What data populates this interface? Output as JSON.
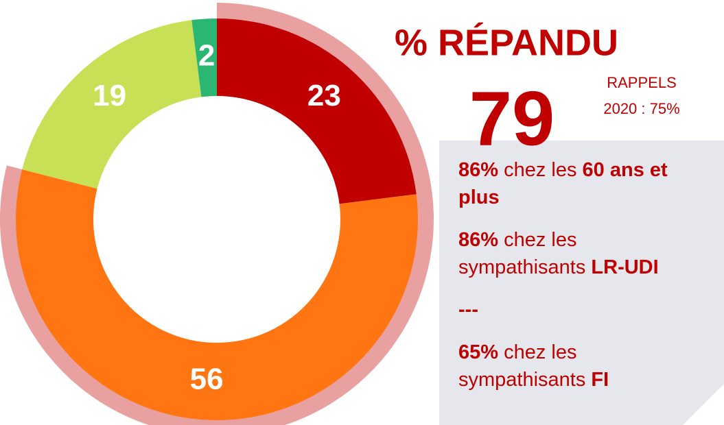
{
  "chart_data": {
    "type": "pie",
    "title": "% RÉPANDU",
    "values": [
      23,
      56,
      19,
      2
    ],
    "colors": [
      "#c00000",
      "#ff7511",
      "#c8e055",
      "#2bb673"
    ],
    "highlight": {
      "value": 79,
      "color": "#e8a0a0"
    },
    "recall": [
      "RAPPELS",
      "2020 : 75%"
    ],
    "notes": [
      {
        "lines": [
          [
            {
              "text": "86%",
              "bold": true
            },
            {
              "text": " chez les ",
              "bold": false
            },
            {
              "text": "60 ans et",
              "bold": true
            }
          ],
          [
            {
              "text": "plus",
              "bold": true
            }
          ]
        ]
      },
      {
        "lines": [
          [
            {
              "text": "86%",
              "bold": true
            },
            {
              "text": " chez les",
              "bold": false
            }
          ],
          [
            {
              "text": "sympathisants ",
              "bold": false
            },
            {
              "text": "LR-UDI",
              "bold": true
            }
          ]
        ]
      },
      {
        "lines": [
          [
            {
              "text": "---",
              "bold": true
            }
          ]
        ]
      },
      {
        "lines": [
          [
            {
              "text": "65%",
              "bold": true
            },
            {
              "text": " chez les",
              "bold": false
            }
          ],
          [
            {
              "text": "sympathisants ",
              "bold": false
            },
            {
              "text": "FI",
              "bold": true
            }
          ]
        ]
      }
    ]
  }
}
